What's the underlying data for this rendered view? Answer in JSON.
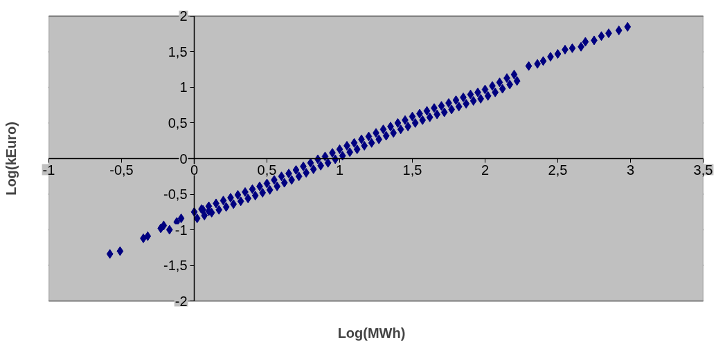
{
  "chart_data": {
    "type": "scatter",
    "xlabel": "Log(MWh)",
    "ylabel": "Log(kEuro)",
    "xlim": [
      -1,
      3.5
    ],
    "ylim": [
      -2,
      2
    ],
    "xticks": [
      {
        "value": -1,
        "label": "-1"
      },
      {
        "value": -0.5,
        "label": "-0,5"
      },
      {
        "value": 0,
        "label": "0"
      },
      {
        "value": 0.5,
        "label": "0,5"
      },
      {
        "value": 1,
        "label": "1"
      },
      {
        "value": 1.5,
        "label": "1,5"
      },
      {
        "value": 2,
        "label": "2"
      },
      {
        "value": 2.5,
        "label": "2,5"
      },
      {
        "value": 3,
        "label": "3"
      },
      {
        "value": 3.5,
        "label": "3,5"
      }
    ],
    "yticks": [
      {
        "value": -2,
        "label": "-2"
      },
      {
        "value": -1.5,
        "label": "-1,5"
      },
      {
        "value": -1,
        "label": "-1"
      },
      {
        "value": -0.5,
        "label": "-0,5"
      },
      {
        "value": 0,
        "label": "0"
      },
      {
        "value": 0.5,
        "label": "0,5"
      },
      {
        "value": 1,
        "label": "1"
      },
      {
        "value": 1.5,
        "label": "1,5"
      },
      {
        "value": 2,
        "label": "2"
      }
    ],
    "grid": "y",
    "marker": "diamond",
    "series": [
      {
        "color": "#000080",
        "x": [
          -0.58,
          -0.51,
          -0.35,
          -0.32,
          -0.23,
          -0.21,
          -0.17,
          -0.12,
          -0.09,
          0.06,
          0.1,
          0.0,
          0.02,
          0.05,
          0.07,
          0.1,
          0.12,
          0.15,
          0.17,
          0.2,
          0.22,
          0.25,
          0.27,
          0.3,
          0.32,
          0.35,
          0.37,
          0.4,
          0.42,
          0.45,
          0.47,
          0.5,
          0.52,
          0.55,
          0.57,
          0.6,
          0.62,
          0.65,
          0.67,
          0.7,
          0.72,
          0.75,
          0.77,
          0.8,
          0.82,
          0.85,
          0.87,
          0.9,
          0.92,
          0.95,
          0.97,
          1.0,
          1.02,
          1.05,
          1.07,
          1.1,
          1.12,
          1.15,
          1.17,
          1.2,
          1.22,
          1.25,
          1.27,
          1.3,
          1.32,
          1.35,
          1.37,
          1.4,
          1.42,
          1.45,
          1.47,
          1.5,
          1.52,
          1.55,
          1.57,
          1.6,
          1.62,
          1.65,
          1.67,
          1.7,
          1.72,
          1.75,
          1.77,
          1.8,
          1.82,
          1.85,
          1.87,
          1.9,
          1.92,
          1.95,
          1.97,
          2.0,
          2.02,
          2.05,
          2.07,
          2.1,
          2.12,
          2.15,
          2.17,
          2.2,
          2.22,
          2.3,
          2.36,
          2.4,
          2.45,
          2.5,
          2.55,
          2.6,
          2.66,
          2.69,
          2.75,
          2.8,
          2.85,
          2.92,
          2.98
        ],
        "values": [
          -1.34,
          -1.3,
          -1.12,
          -1.09,
          -0.98,
          -0.94,
          -1.0,
          -0.89,
          -0.84,
          -0.72,
          -0.74,
          -0.75,
          -0.84,
          -0.71,
          -0.8,
          -0.67,
          -0.76,
          -0.63,
          -0.72,
          -0.59,
          -0.68,
          -0.55,
          -0.64,
          -0.51,
          -0.6,
          -0.47,
          -0.56,
          -0.43,
          -0.52,
          -0.39,
          -0.48,
          -0.35,
          -0.44,
          -0.3,
          -0.39,
          -0.25,
          -0.34,
          -0.21,
          -0.3,
          -0.16,
          -0.25,
          -0.11,
          -0.2,
          -0.06,
          -0.15,
          -0.01,
          -0.1,
          0.03,
          -0.06,
          0.08,
          -0.01,
          0.13,
          0.04,
          0.18,
          0.09,
          0.22,
          0.13,
          0.27,
          0.18,
          0.31,
          0.22,
          0.36,
          0.27,
          0.41,
          0.32,
          0.45,
          0.36,
          0.5,
          0.41,
          0.54,
          0.45,
          0.59,
          0.5,
          0.63,
          0.54,
          0.67,
          0.58,
          0.71,
          0.62,
          0.74,
          0.65,
          0.78,
          0.69,
          0.82,
          0.73,
          0.86,
          0.77,
          0.9,
          0.81,
          0.93,
          0.84,
          0.97,
          0.88,
          1.02,
          0.93,
          1.07,
          0.98,
          1.13,
          1.04,
          1.18,
          1.09,
          1.3,
          1.33,
          1.37,
          1.43,
          1.47,
          1.53,
          1.55,
          1.57,
          1.64,
          1.66,
          1.72,
          1.76,
          1.8,
          1.85
        ]
      }
    ]
  }
}
